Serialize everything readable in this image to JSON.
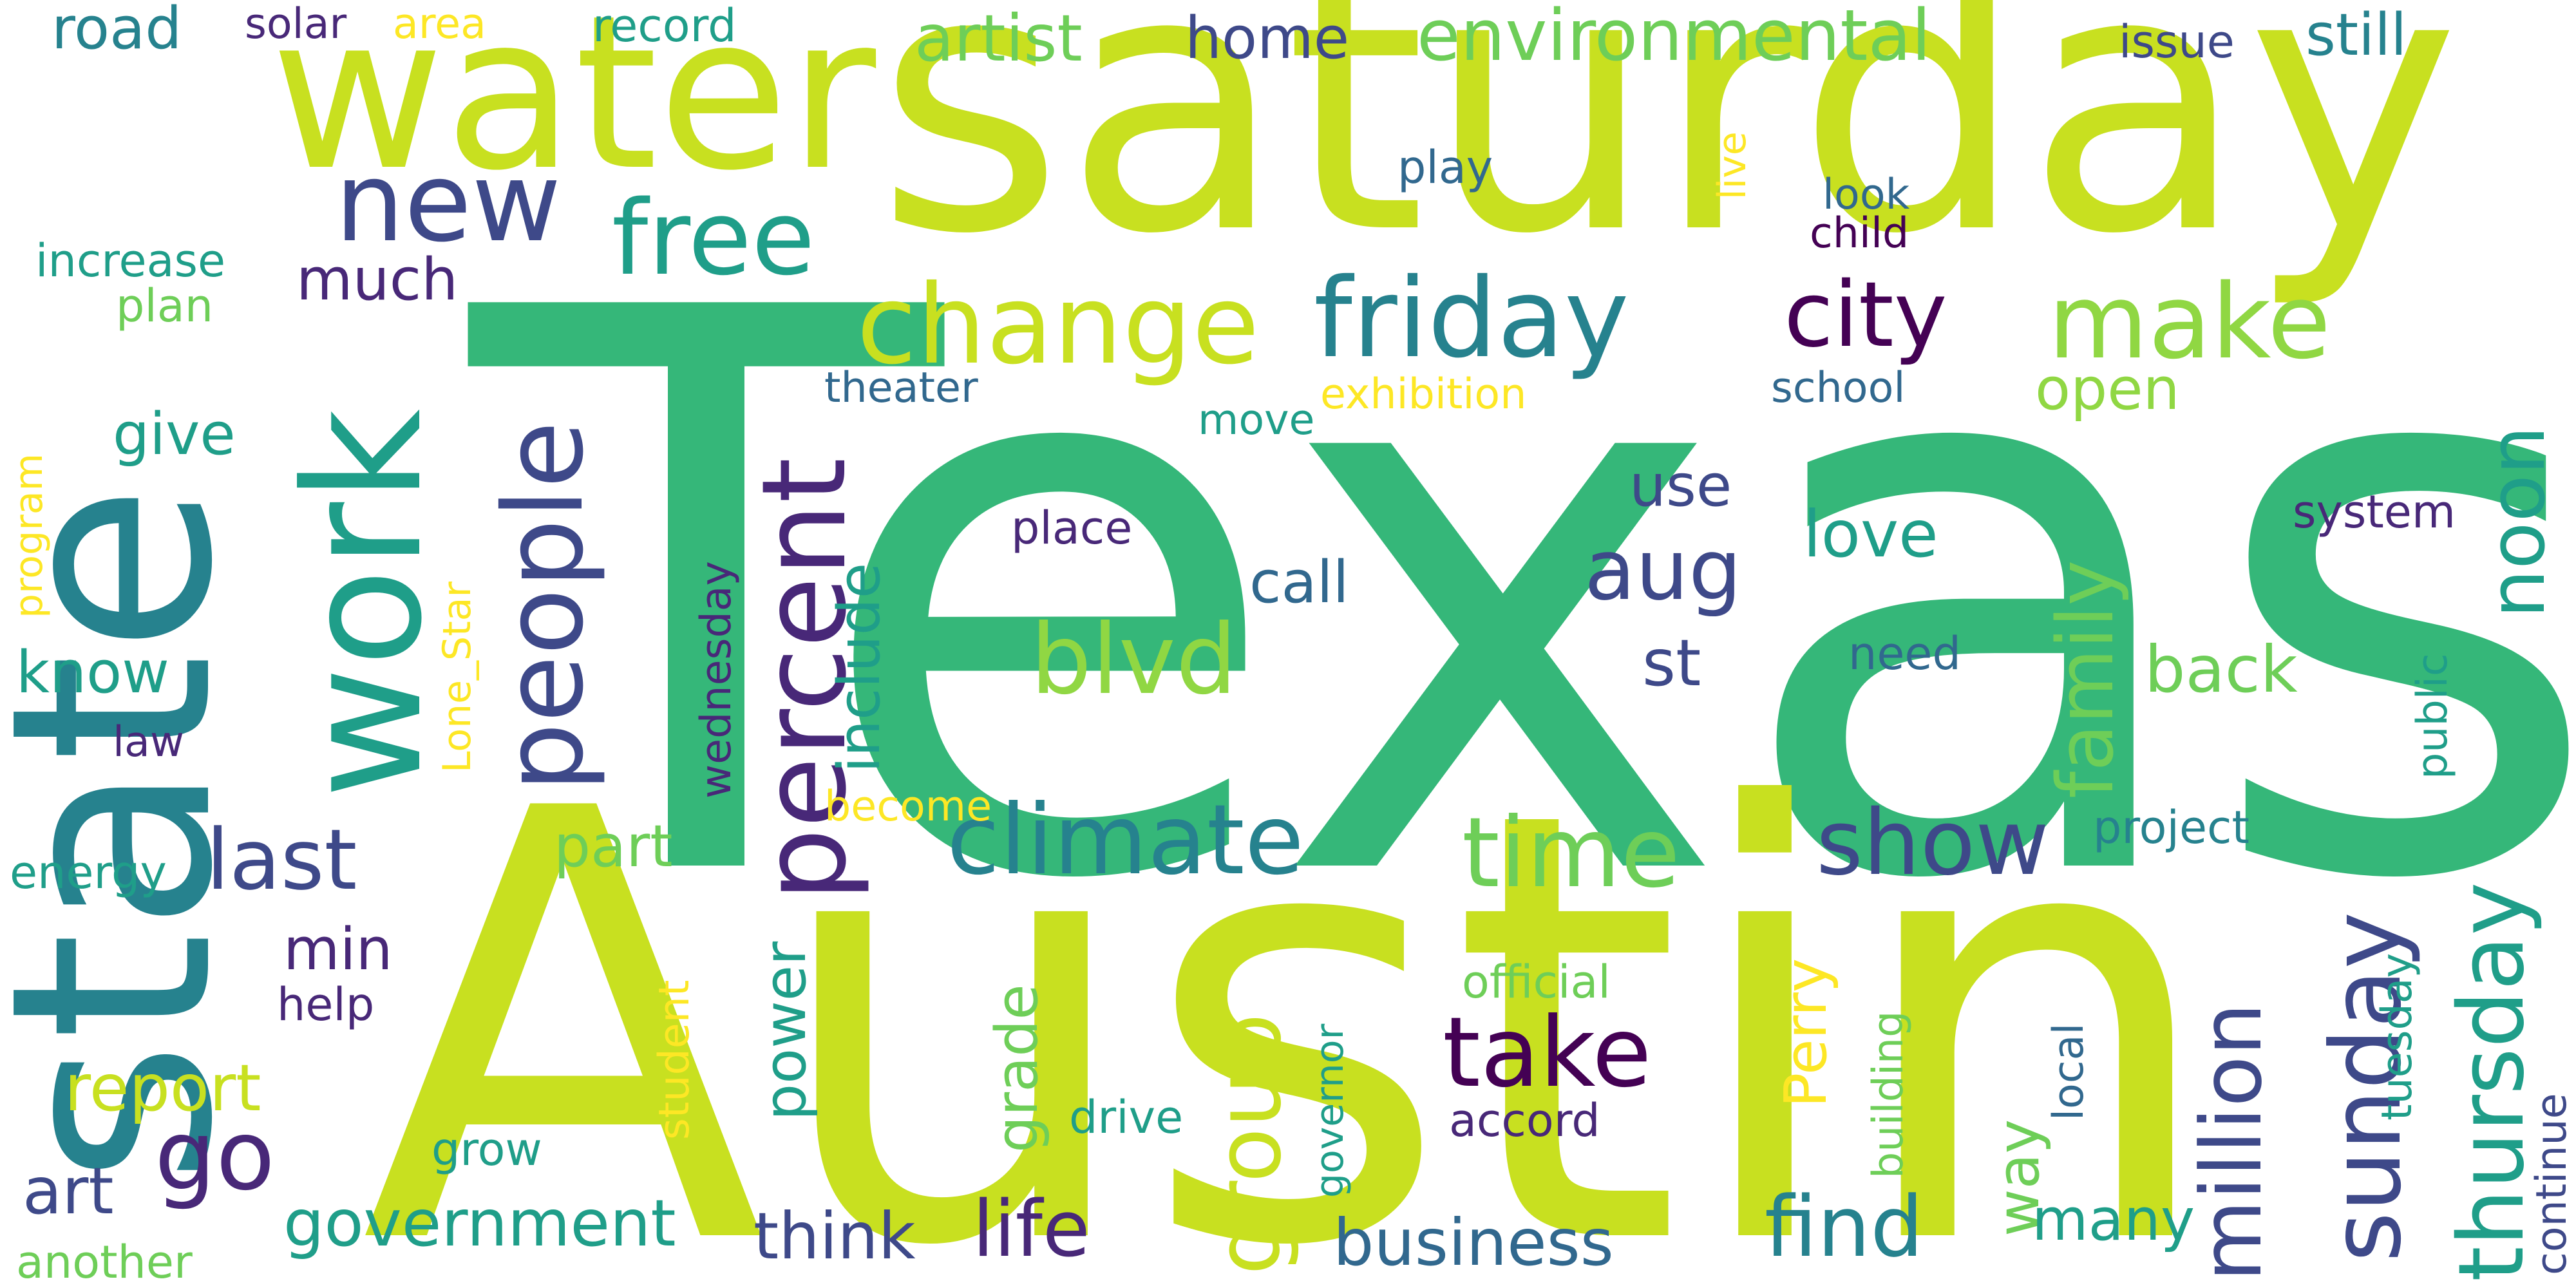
{
  "words": {
    "texas": "Texas",
    "austin": "Austin",
    "saturday": "saturday",
    "state": "state",
    "water": "water",
    "work": "work",
    "new": "new",
    "free": "free",
    "change": "change",
    "friday": "friday",
    "city": "city",
    "make": "make",
    "people": "people",
    "percent": "percent",
    "blvd": "blvd",
    "climate": "climate",
    "time": "time",
    "show": "show",
    "sunday": "sunday",
    "thursday": "thursday",
    "noon": "noon",
    "family": "family",
    "back": "back",
    "aug": "aug",
    "st": "st",
    "use": "use",
    "love": "love",
    "include": "include",
    "last": "last",
    "take": "take",
    "group": "group",
    "million": "million",
    "go": "go",
    "life": "life",
    "find": "find",
    "business": "business",
    "government": "government",
    "think": "think",
    "report": "report",
    "art": "art",
    "road": "road",
    "solar": "solar",
    "area": "area",
    "record": "record",
    "artist": "artist",
    "home": "home",
    "environmental": "environmental",
    "still": "still",
    "issue": "issue",
    "increase": "increase",
    "plan": "plan",
    "much": "much",
    "give": "give",
    "theater": "theater",
    "exhibition": "exhibition",
    "move": "move",
    "school": "school",
    "open": "open",
    "play": "play",
    "look": "look",
    "child": "child",
    "live": "live",
    "system": "system",
    "place": "place",
    "call": "call",
    "need": "need",
    "know": "know",
    "law": "law",
    "program": "program",
    "lone_star": "Lone_Star",
    "wednesday": "wednesday",
    "become": "become",
    "energy": "energy",
    "part": "part",
    "min": "min",
    "help": "help",
    "official": "official",
    "project": "project",
    "public": "public",
    "student": "student",
    "power": "power",
    "grade": "grade",
    "governor": "governor",
    "drive": "drive",
    "perry": "Perry",
    "accord": "accord",
    "building": "building",
    "local": "local",
    "way": "way",
    "many": "many",
    "tuesday": "tuesday",
    "continue": "continue",
    "grow": "grow",
    "another": "another"
  }
}
